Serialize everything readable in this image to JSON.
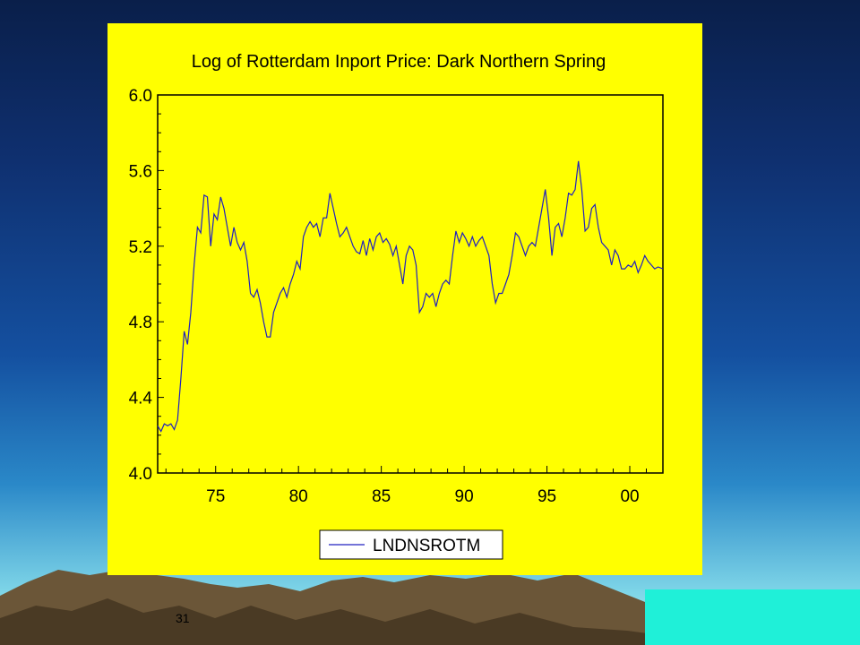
{
  "slide": {
    "number": "31"
  },
  "colors": {
    "panel": "#ffff00",
    "line": "#2020c0",
    "frame": "#000000"
  },
  "chart_data": {
    "type": "line",
    "title": "Log of Rotterdam Inport Price: Dark Northern Spring",
    "xlabel": "",
    "ylabel": "",
    "x_ticks": [
      1975,
      1980,
      1985,
      1990,
      1995,
      2000
    ],
    "x_tick_labels": [
      "75",
      "80",
      "85",
      "90",
      "95",
      "00"
    ],
    "xlim": [
      1971.5,
      2002
    ],
    "y_ticks": [
      4.0,
      4.4,
      4.8,
      5.2,
      5.6,
      6.0
    ],
    "y_tick_labels": [
      "4.0",
      "4.4",
      "4.8",
      "5.2",
      "5.6",
      "6.0"
    ],
    "ylim": [
      4.0,
      6.0
    ],
    "grid": false,
    "legend_position": "bottom-center",
    "series": [
      {
        "name": "LNDNSROTM",
        "points": [
          [
            1971.5,
            4.25
          ],
          [
            1971.7,
            4.22
          ],
          [
            1971.9,
            4.26
          ],
          [
            1972.1,
            4.25
          ],
          [
            1972.3,
            4.26
          ],
          [
            1972.5,
            4.23
          ],
          [
            1972.7,
            4.28
          ],
          [
            1972.9,
            4.5
          ],
          [
            1973.1,
            4.75
          ],
          [
            1973.3,
            4.68
          ],
          [
            1973.5,
            4.85
          ],
          [
            1973.7,
            5.1
          ],
          [
            1973.9,
            5.3
          ],
          [
            1974.1,
            5.27
          ],
          [
            1974.3,
            5.47
          ],
          [
            1974.5,
            5.46
          ],
          [
            1974.7,
            5.2
          ],
          [
            1974.9,
            5.37
          ],
          [
            1975.1,
            5.34
          ],
          [
            1975.3,
            5.46
          ],
          [
            1975.5,
            5.4
          ],
          [
            1975.7,
            5.3
          ],
          [
            1975.9,
            5.2
          ],
          [
            1976.1,
            5.3
          ],
          [
            1976.3,
            5.22
          ],
          [
            1976.5,
            5.18
          ],
          [
            1976.7,
            5.22
          ],
          [
            1976.9,
            5.12
          ],
          [
            1977.1,
            4.95
          ],
          [
            1977.3,
            4.93
          ],
          [
            1977.5,
            4.97
          ],
          [
            1977.7,
            4.9
          ],
          [
            1977.9,
            4.8
          ],
          [
            1978.1,
            4.72
          ],
          [
            1978.3,
            4.72
          ],
          [
            1978.5,
            4.85
          ],
          [
            1978.7,
            4.9
          ],
          [
            1978.9,
            4.95
          ],
          [
            1979.1,
            4.98
          ],
          [
            1979.3,
            4.93
          ],
          [
            1979.5,
            5.0
          ],
          [
            1979.7,
            5.05
          ],
          [
            1979.9,
            5.12
          ],
          [
            1980.1,
            5.08
          ],
          [
            1980.3,
            5.25
          ],
          [
            1980.5,
            5.3
          ],
          [
            1980.7,
            5.33
          ],
          [
            1980.9,
            5.3
          ],
          [
            1981.1,
            5.32
          ],
          [
            1981.3,
            5.25
          ],
          [
            1981.5,
            5.35
          ],
          [
            1981.7,
            5.35
          ],
          [
            1981.9,
            5.48
          ],
          [
            1982.1,
            5.4
          ],
          [
            1982.3,
            5.32
          ],
          [
            1982.5,
            5.25
          ],
          [
            1982.7,
            5.27
          ],
          [
            1982.9,
            5.3
          ],
          [
            1983.1,
            5.25
          ],
          [
            1983.3,
            5.2
          ],
          [
            1983.5,
            5.17
          ],
          [
            1983.7,
            5.16
          ],
          [
            1983.9,
            5.23
          ],
          [
            1984.1,
            5.15
          ],
          [
            1984.3,
            5.24
          ],
          [
            1984.5,
            5.18
          ],
          [
            1984.7,
            5.25
          ],
          [
            1984.9,
            5.27
          ],
          [
            1985.1,
            5.22
          ],
          [
            1985.3,
            5.24
          ],
          [
            1985.5,
            5.21
          ],
          [
            1985.7,
            5.15
          ],
          [
            1985.9,
            5.2
          ],
          [
            1986.1,
            5.1
          ],
          [
            1986.3,
            5.0
          ],
          [
            1986.5,
            5.15
          ],
          [
            1986.7,
            5.2
          ],
          [
            1986.9,
            5.18
          ],
          [
            1987.1,
            5.1
          ],
          [
            1987.3,
            4.85
          ],
          [
            1987.5,
            4.88
          ],
          [
            1987.7,
            4.95
          ],
          [
            1987.9,
            4.93
          ],
          [
            1988.1,
            4.95
          ],
          [
            1988.3,
            4.88
          ],
          [
            1988.5,
            4.95
          ],
          [
            1988.7,
            5.0
          ],
          [
            1988.9,
            5.02
          ],
          [
            1989.1,
            5.0
          ],
          [
            1989.3,
            5.15
          ],
          [
            1989.5,
            5.28
          ],
          [
            1989.7,
            5.22
          ],
          [
            1989.9,
            5.27
          ],
          [
            1990.1,
            5.24
          ],
          [
            1990.3,
            5.2
          ],
          [
            1990.5,
            5.25
          ],
          [
            1990.7,
            5.2
          ],
          [
            1990.9,
            5.23
          ],
          [
            1991.1,
            5.25
          ],
          [
            1991.3,
            5.2
          ],
          [
            1991.5,
            5.15
          ],
          [
            1991.7,
            5.0
          ],
          [
            1991.9,
            4.9
          ],
          [
            1992.1,
            4.95
          ],
          [
            1992.3,
            4.95
          ],
          [
            1992.5,
            5.0
          ],
          [
            1992.7,
            5.05
          ],
          [
            1992.9,
            5.15
          ],
          [
            1993.1,
            5.27
          ],
          [
            1993.3,
            5.25
          ],
          [
            1993.5,
            5.2
          ],
          [
            1993.7,
            5.15
          ],
          [
            1993.9,
            5.2
          ],
          [
            1994.1,
            5.22
          ],
          [
            1994.3,
            5.2
          ],
          [
            1994.5,
            5.3
          ],
          [
            1994.7,
            5.4
          ],
          [
            1994.9,
            5.5
          ],
          [
            1995.1,
            5.35
          ],
          [
            1995.3,
            5.15
          ],
          [
            1995.5,
            5.3
          ],
          [
            1995.7,
            5.32
          ],
          [
            1995.9,
            5.25
          ],
          [
            1996.1,
            5.35
          ],
          [
            1996.3,
            5.48
          ],
          [
            1996.5,
            5.47
          ],
          [
            1996.7,
            5.5
          ],
          [
            1996.9,
            5.65
          ],
          [
            1997.1,
            5.5
          ],
          [
            1997.3,
            5.28
          ],
          [
            1997.5,
            5.3
          ],
          [
            1997.7,
            5.4
          ],
          [
            1997.9,
            5.42
          ],
          [
            1998.1,
            5.3
          ],
          [
            1998.3,
            5.22
          ],
          [
            1998.5,
            5.2
          ],
          [
            1998.7,
            5.18
          ],
          [
            1998.9,
            5.1
          ],
          [
            1999.1,
            5.18
          ],
          [
            1999.3,
            5.15
          ],
          [
            1999.5,
            5.08
          ],
          [
            1999.7,
            5.08
          ],
          [
            1999.9,
            5.1
          ],
          [
            2000.1,
            5.09
          ],
          [
            2000.3,
            5.12
          ],
          [
            2000.5,
            5.06
          ],
          [
            2000.7,
            5.1
          ],
          [
            2000.9,
            5.15
          ],
          [
            2001.1,
            5.12
          ],
          [
            2001.3,
            5.1
          ],
          [
            2001.5,
            5.08
          ],
          [
            2001.7,
            5.09
          ],
          [
            2002.0,
            5.08
          ]
        ]
      }
    ]
  }
}
